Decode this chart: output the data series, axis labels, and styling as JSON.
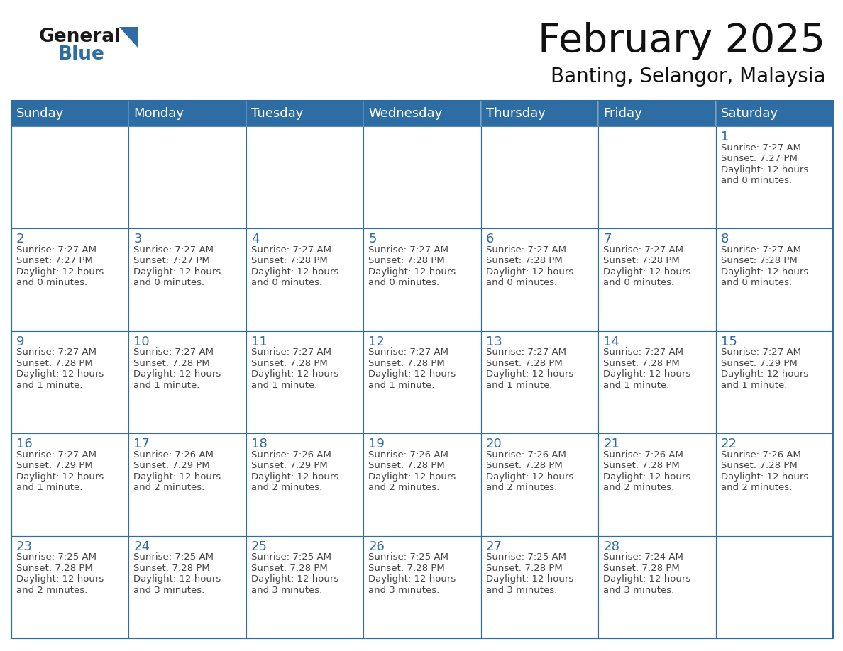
{
  "title": "February 2025",
  "subtitle": "Banting, Selangor, Malaysia",
  "header_bg_color": "#2E6DA4",
  "header_text_color": "#FFFFFF",
  "cell_bg_color": "#FFFFFF",
  "border_color": "#2E6DA4",
  "day_number_color": "#2E6DA4",
  "text_color": "#444444",
  "days_of_week": [
    "Sunday",
    "Monday",
    "Tuesday",
    "Wednesday",
    "Thursday",
    "Friday",
    "Saturday"
  ],
  "calendar_data": [
    [
      null,
      null,
      null,
      null,
      null,
      null,
      {
        "day": 1,
        "sunrise": "7:27 AM",
        "sunset": "7:27 PM",
        "daylight": "12 hours and 0 minutes."
      }
    ],
    [
      {
        "day": 2,
        "sunrise": "7:27 AM",
        "sunset": "7:27 PM",
        "daylight": "12 hours and 0 minutes."
      },
      {
        "day": 3,
        "sunrise": "7:27 AM",
        "sunset": "7:27 PM",
        "daylight": "12 hours and 0 minutes."
      },
      {
        "day": 4,
        "sunrise": "7:27 AM",
        "sunset": "7:28 PM",
        "daylight": "12 hours and 0 minutes."
      },
      {
        "day": 5,
        "sunrise": "7:27 AM",
        "sunset": "7:28 PM",
        "daylight": "12 hours and 0 minutes."
      },
      {
        "day": 6,
        "sunrise": "7:27 AM",
        "sunset": "7:28 PM",
        "daylight": "12 hours and 0 minutes."
      },
      {
        "day": 7,
        "sunrise": "7:27 AM",
        "sunset": "7:28 PM",
        "daylight": "12 hours and 0 minutes."
      },
      {
        "day": 8,
        "sunrise": "7:27 AM",
        "sunset": "7:28 PM",
        "daylight": "12 hours and 0 minutes."
      }
    ],
    [
      {
        "day": 9,
        "sunrise": "7:27 AM",
        "sunset": "7:28 PM",
        "daylight": "12 hours and 1 minute."
      },
      {
        "day": 10,
        "sunrise": "7:27 AM",
        "sunset": "7:28 PM",
        "daylight": "12 hours and 1 minute."
      },
      {
        "day": 11,
        "sunrise": "7:27 AM",
        "sunset": "7:28 PM",
        "daylight": "12 hours and 1 minute."
      },
      {
        "day": 12,
        "sunrise": "7:27 AM",
        "sunset": "7:28 PM",
        "daylight": "12 hours and 1 minute."
      },
      {
        "day": 13,
        "sunrise": "7:27 AM",
        "sunset": "7:28 PM",
        "daylight": "12 hours and 1 minute."
      },
      {
        "day": 14,
        "sunrise": "7:27 AM",
        "sunset": "7:28 PM",
        "daylight": "12 hours and 1 minute."
      },
      {
        "day": 15,
        "sunrise": "7:27 AM",
        "sunset": "7:29 PM",
        "daylight": "12 hours and 1 minute."
      }
    ],
    [
      {
        "day": 16,
        "sunrise": "7:27 AM",
        "sunset": "7:29 PM",
        "daylight": "12 hours and 1 minute."
      },
      {
        "day": 17,
        "sunrise": "7:26 AM",
        "sunset": "7:29 PM",
        "daylight": "12 hours and 2 minutes."
      },
      {
        "day": 18,
        "sunrise": "7:26 AM",
        "sunset": "7:29 PM",
        "daylight": "12 hours and 2 minutes."
      },
      {
        "day": 19,
        "sunrise": "7:26 AM",
        "sunset": "7:28 PM",
        "daylight": "12 hours and 2 minutes."
      },
      {
        "day": 20,
        "sunrise": "7:26 AM",
        "sunset": "7:28 PM",
        "daylight": "12 hours and 2 minutes."
      },
      {
        "day": 21,
        "sunrise": "7:26 AM",
        "sunset": "7:28 PM",
        "daylight": "12 hours and 2 minutes."
      },
      {
        "day": 22,
        "sunrise": "7:26 AM",
        "sunset": "7:28 PM",
        "daylight": "12 hours and 2 minutes."
      }
    ],
    [
      {
        "day": 23,
        "sunrise": "7:25 AM",
        "sunset": "7:28 PM",
        "daylight": "12 hours and 2 minutes."
      },
      {
        "day": 24,
        "sunrise": "7:25 AM",
        "sunset": "7:28 PM",
        "daylight": "12 hours and 3 minutes."
      },
      {
        "day": 25,
        "sunrise": "7:25 AM",
        "sunset": "7:28 PM",
        "daylight": "12 hours and 3 minutes."
      },
      {
        "day": 26,
        "sunrise": "7:25 AM",
        "sunset": "7:28 PM",
        "daylight": "12 hours and 3 minutes."
      },
      {
        "day": 27,
        "sunrise": "7:25 AM",
        "sunset": "7:28 PM",
        "daylight": "12 hours and 3 minutes."
      },
      {
        "day": 28,
        "sunrise": "7:24 AM",
        "sunset": "7:28 PM",
        "daylight": "12 hours and 3 minutes."
      },
      null
    ]
  ],
  "logo_color_general": "#1a1a1a",
  "logo_color_blue": "#2E6DA4",
  "title_fontsize": 40,
  "subtitle_fontsize": 20,
  "header_fontsize": 13,
  "day_num_fontsize": 13,
  "cell_text_fontsize": 9.5
}
